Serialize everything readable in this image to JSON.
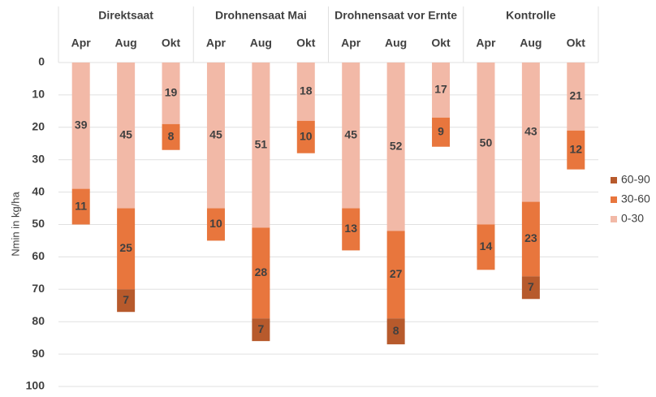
{
  "chart_data": {
    "type": "stacked-bar",
    "y_label": "Nmin in kg/ha",
    "groups": [
      "Direktsaat",
      "Drohnensaat Mai",
      "Drohnensaat vor Ernte",
      "Kontrolle"
    ],
    "categories": [
      "Apr",
      "Aug",
      "Okt",
      "Apr",
      "Aug",
      "Okt",
      "Apr",
      "Aug",
      "Okt",
      "Apr",
      "Aug",
      "Okt"
    ],
    "series": [
      {
        "name": "0-30",
        "color": "#f2b9a7",
        "values": [
          39,
          45,
          19,
          45,
          51,
          18,
          45,
          52,
          17,
          50,
          43,
          21
        ]
      },
      {
        "name": "30-60",
        "color": "#e8763d",
        "values": [
          11,
          25,
          8,
          10,
          28,
          10,
          13,
          27,
          9,
          14,
          23,
          12
        ]
      },
      {
        "name": "60-90",
        "color": "#b75a2c",
        "values": [
          null,
          7,
          null,
          null,
          7,
          null,
          null,
          8,
          null,
          null,
          7,
          null
        ]
      }
    ],
    "ylim": [
      0,
      100
    ],
    "yticks": [
      0,
      10,
      20,
      30,
      40,
      50,
      60,
      70,
      80,
      90,
      100
    ],
    "y_inverted": true,
    "grid": true,
    "legend": "right"
  }
}
